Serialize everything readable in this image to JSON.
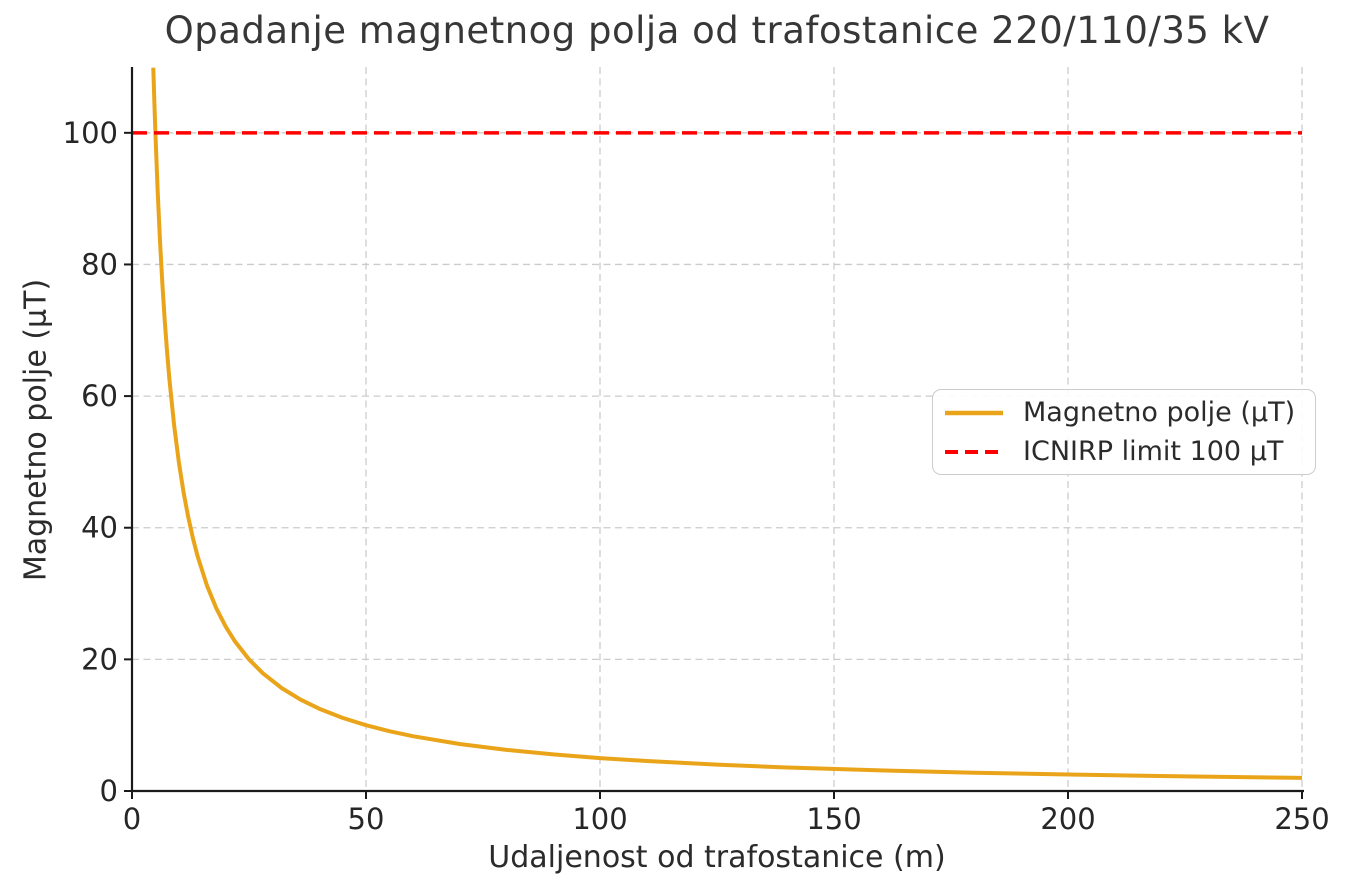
{
  "chart_data": {
    "type": "line",
    "title": "Opadanje magnetnog polja od trafostanice 220/110/35 kV",
    "xlabel": "Udaljenost od trafostanice (m)",
    "ylabel": "Magnetno polje (μT)",
    "xlim": [
      0,
      250
    ],
    "ylim": [
      0,
      110
    ],
    "xticks": [
      0,
      50,
      100,
      150,
      200,
      250
    ],
    "yticks": [
      0,
      20,
      40,
      60,
      80,
      100
    ],
    "grid": true,
    "grid_style": "dashed",
    "grid_color": "#cccccc",
    "axis_color": "#1a1a1a",
    "text_color": "#262626",
    "legend_position": "center-right",
    "series": [
      {
        "name": "Magnetno polje (μT)",
        "color": "#EAA41A",
        "line_style": "solid",
        "line_width": 4,
        "model": "B(x) = 500 / x",
        "x": [
          4.55,
          4.8,
          5,
          5.5,
          6,
          6.5,
          7,
          7.5,
          8,
          9,
          10,
          11,
          12,
          13,
          14,
          16,
          18,
          20,
          22,
          25,
          28,
          32,
          36,
          40,
          45,
          50,
          55,
          60,
          70,
          80,
          90,
          100,
          110,
          125,
          140,
          160,
          180,
          200,
          225,
          250
        ],
        "y": [
          109.89,
          104.17,
          100,
          90.91,
          83.33,
          76.92,
          71.43,
          66.67,
          62.5,
          55.56,
          50,
          45.45,
          41.67,
          38.46,
          35.71,
          31.25,
          27.78,
          25,
          22.73,
          20,
          17.86,
          15.63,
          13.89,
          12.5,
          11.11,
          10,
          9.09,
          8.33,
          7.14,
          6.25,
          5.56,
          5,
          4.55,
          4,
          3.57,
          3.13,
          2.78,
          2.5,
          2.22,
          2
        ]
      },
      {
        "name": "ICNIRP limit 100 μT",
        "color": "#FF0000",
        "line_style": "dashed",
        "line_width": 3.5,
        "y_const": 100
      }
    ]
  }
}
